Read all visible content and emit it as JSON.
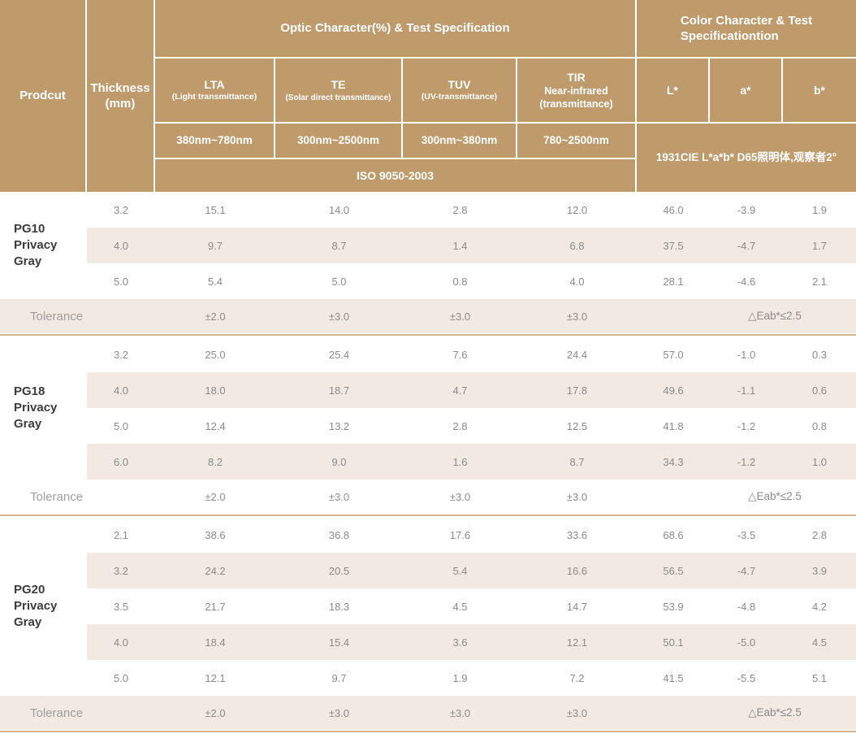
{
  "chart_data": {
    "type": "table",
    "header": {
      "product_label": "Prodcut",
      "thickness_label": "Thickness\n(mm)",
      "optic_group_title": "Optic Character(%) & Test Specification",
      "color_group_title": "Color Character & Test\nSpecificationtion",
      "optic_columns": [
        {
          "name": "LTA",
          "sub": "(Light transmittance)",
          "range": "380nm~780nm"
        },
        {
          "name": "TE",
          "sub": "(Solar direct transmittance)",
          "range": "300nm~2500nm"
        },
        {
          "name": "TUV",
          "sub": "(UV-transmittance)",
          "range": "300nm~380nm"
        },
        {
          "name": "TIR",
          "sub": "Near-infrared\n(transmittance)",
          "range": "780~2500nm"
        }
      ],
      "color_columns": [
        "L*",
        "a*",
        "b*"
      ],
      "optic_standard": "ISO 9050-2003",
      "color_standard": "1931CIE L*a*b*  D65照明体,观察者2°"
    },
    "sections": [
      {
        "product": "PG10",
        "product_type": "Privacy Gray",
        "rows": [
          {
            "thickness": "3.2",
            "lta": "15.1",
            "te": "14.0",
            "tuv": "2.8",
            "tir": "12.0",
            "l": "46.0",
            "a": "-3.9",
            "b": "1.9"
          },
          {
            "thickness": "4.0",
            "lta": "9.7",
            "te": "8.7",
            "tuv": "1.4",
            "tir": "6.8",
            "l": "37.5",
            "a": "-4.7",
            "b": "1.7"
          },
          {
            "thickness": "5.0",
            "lta": "5.4",
            "te": "5.0",
            "tuv": "0.8",
            "tir": "4.0",
            "l": "28.1",
            "a": "-4.6",
            "b": "2.1"
          }
        ],
        "tolerance": {
          "label": "Tolerance",
          "lta": "±2.0",
          "te": "±3.0",
          "tuv": "±3.0",
          "tir": "±3.0",
          "color": "△Eab*≤2.5"
        }
      },
      {
        "product": "PG18",
        "product_type": "Privacy Gray",
        "rows": [
          {
            "thickness": "3.2",
            "lta": "25.0",
            "te": "25.4",
            "tuv": "7.6",
            "tir": "24.4",
            "l": "57.0",
            "a": "-1.0",
            "b": "0.3"
          },
          {
            "thickness": "4.0",
            "lta": "18.0",
            "te": "18.7",
            "tuv": "4.7",
            "tir": "17.8",
            "l": "49.6",
            "a": "-1.1",
            "b": "0.6"
          },
          {
            "thickness": "5.0",
            "lta": "12.4",
            "te": "13.2",
            "tuv": "2.8",
            "tir": "12.5",
            "l": "41.8",
            "a": "-1.2",
            "b": "0.8"
          },
          {
            "thickness": "6.0",
            "lta": "8.2",
            "te": "9.0",
            "tuv": "1.6",
            "tir": "8.7",
            "l": "34.3",
            "a": "-1.2",
            "b": "1.0"
          }
        ],
        "tolerance": {
          "label": "Tolerance",
          "lta": "±2.0",
          "te": "±3.0",
          "tuv": "±3.0",
          "tir": "±3.0",
          "color": "△Eab*≤2.5"
        }
      },
      {
        "product": "PG20",
        "product_type": "Privacy Gray",
        "rows": [
          {
            "thickness": "2.1",
            "lta": "38.6",
            "te": "36.8",
            "tuv": "17.6",
            "tir": "33.6",
            "l": "68.6",
            "a": "-3.5",
            "b": "2.8"
          },
          {
            "thickness": "3.2",
            "lta": "24.2",
            "te": "20.5",
            "tuv": "5.4",
            "tir": "16.6",
            "l": "56.5",
            "a": "-4.7",
            "b": "3.9"
          },
          {
            "thickness": "3.5",
            "lta": "21.7",
            "te": "18.3",
            "tuv": "4.5",
            "tir": "14.7",
            "l": "53.9",
            "a": "-4.8",
            "b": "4.2"
          },
          {
            "thickness": "4.0",
            "lta": "18.4",
            "te": "15.4",
            "tuv": "3.6",
            "tir": "12.1",
            "l": "50.1",
            "a": "-5.0",
            "b": "4.5"
          },
          {
            "thickness": "5.0",
            "lta": "12.1",
            "te": "9.7",
            "tuv": "1.9",
            "tir": "7.2",
            "l": "41.5",
            "a": "-5.5",
            "b": "5.1"
          }
        ],
        "tolerance": {
          "label": "Tolerance",
          "lta": "±2.0",
          "te": "±3.0",
          "tuv": "±3.0",
          "tir": "±3.0",
          "color": "△Eab*≤2.5"
        }
      }
    ]
  },
  "colors": {
    "header_bg": "#bf9a6b",
    "header_text": "#ffffff",
    "stripe_bg": "#f2e9e2",
    "separator_line": "#d2b68e",
    "value_text": "#8a8a8a",
    "product_text": "#3c3c3c",
    "tolerance_text": "#9d9d9d"
  }
}
